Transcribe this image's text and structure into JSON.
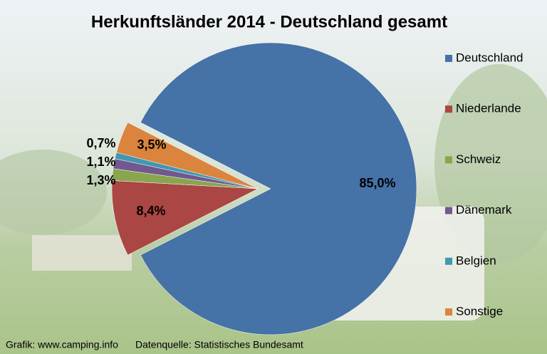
{
  "chart_data": {
    "type": "pie",
    "title": "Herkunftsländer 2014 - Deutschland gesamt",
    "categories": [
      "Deutschland",
      "Niederlande",
      "Schweiz",
      "Dänemark",
      "Belgien",
      "Sonstige"
    ],
    "values": [
      85.0,
      8.4,
      1.3,
      1.1,
      0.7,
      3.5
    ],
    "value_labels": [
      "85,0%",
      "8,4%",
      "1,3%",
      "1,1%",
      "0,7%",
      "3,5%"
    ],
    "colors": [
      "#4572a7",
      "#aa4643",
      "#89a54e",
      "#71588f",
      "#4198af",
      "#db843d"
    ],
    "legend": "right",
    "credit": "Grafik: www.camping.info",
    "source": "Datenquelle: Statistisches Bundesamt"
  }
}
